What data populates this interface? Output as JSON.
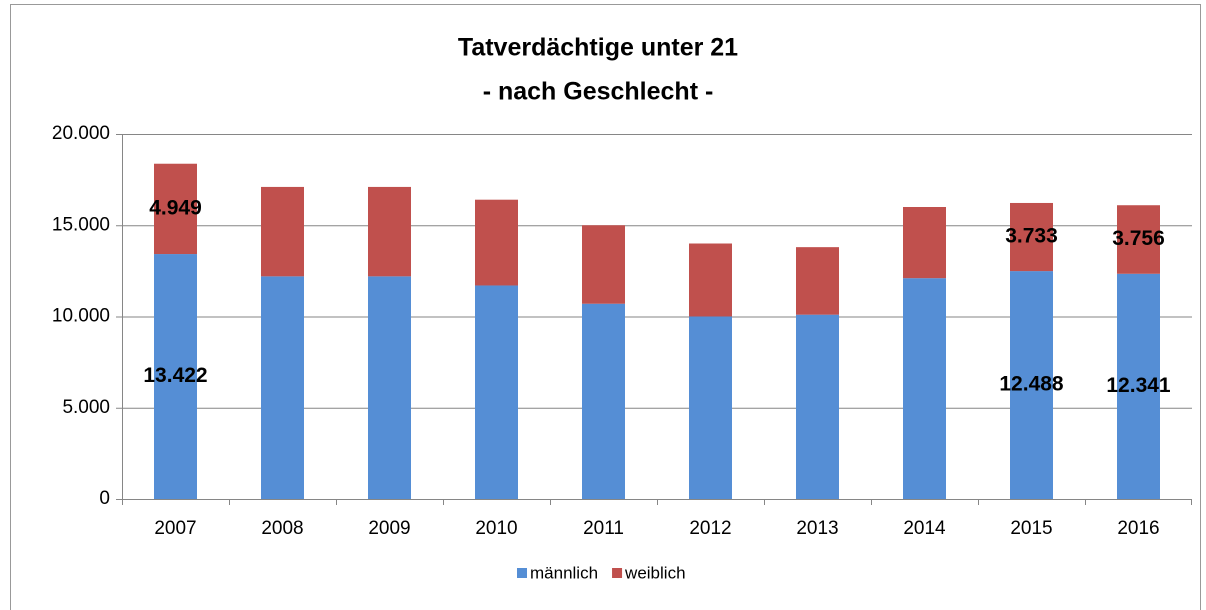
{
  "chart_data": {
    "type": "bar",
    "stacked": true,
    "title": "Tatverdächtige unter 21",
    "subtitle": "- nach Geschlecht -",
    "categories": [
      "2007",
      "2008",
      "2009",
      "2010",
      "2011",
      "2012",
      "2013",
      "2014",
      "2015",
      "2016"
    ],
    "series": [
      {
        "name": "männlich",
        "color": "#558ed5",
        "values": [
          13422,
          12200,
          12200,
          11700,
          10700,
          10000,
          10100,
          12100,
          12488,
          12341
        ],
        "value_labels": [
          "13.422",
          null,
          null,
          null,
          null,
          null,
          null,
          null,
          "12.488",
          "12.341"
        ]
      },
      {
        "name": "weiblich",
        "color": "#c0504d",
        "values": [
          4949,
          4900,
          4900,
          4700,
          4300,
          4000,
          3700,
          3900,
          3733,
          3756
        ],
        "value_labels": [
          "4.949",
          null,
          null,
          null,
          null,
          null,
          null,
          null,
          "3.733",
          "3.756"
        ]
      }
    ],
    "ylim": [
      0,
      20000
    ],
    "yticks": [
      0,
      {
        "value": 5000,
        "label": "5.000"
      },
      {
        "value": 10000,
        "label": "10.000"
      },
      {
        "value": 15000,
        "label": "15.000"
      },
      {
        "value": 20000,
        "label": "20.000"
      }
    ],
    "grid": true,
    "legend": "bottom"
  }
}
